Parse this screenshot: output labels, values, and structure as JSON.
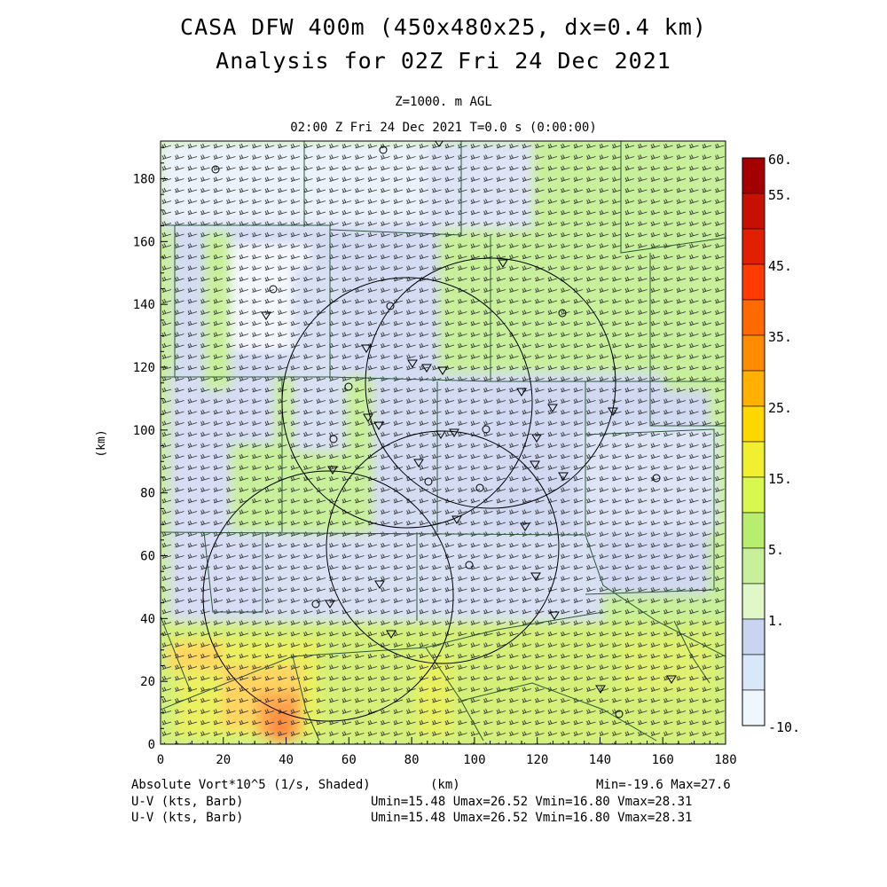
{
  "header": {
    "title_line1": "CASA DFW 400m (450x480x25, dx=0.4 km)",
    "title_line2": "Analysis for 02Z Fri 24 Dec 2021",
    "level": "Z=1000. m AGL",
    "time": "02:00 Z Fri 24 Dec 2021    T=0.0 s (0:00:00)"
  },
  "footer": {
    "field": "Absolute Vort*10^5 (1/s, Shaded)",
    "xunit": "(km)",
    "minmax": "Min=-19.6 Max=27.6",
    "barb1": "U-V (kts, Barb)",
    "barb2": "U-V (kts, Barb)",
    "stats1": "Umin=15.48 Umax=26.52 Vmin=16.80 Vmax=28.31",
    "stats2": "Umin=15.48 Umax=26.52 Vmin=16.80 Vmax=28.31"
  },
  "colorbar": {
    "labels": [
      "60.",
      "55.",
      "45.",
      "35.",
      "25.",
      "15.",
      "5.",
      "1.",
      "-10."
    ],
    "colors": [
      "#a40000",
      "#c81000",
      "#e02000",
      "#ff3c00",
      "#ff6a00",
      "#ff8c00",
      "#ffb000",
      "#ffd800",
      "#f0f030",
      "#d8f850",
      "#b8ee70",
      "#c8f09a",
      "#e0f8c8",
      "#c8d4f0",
      "#d8e8f8",
      "#eef8fc"
    ]
  },
  "chart_data": {
    "type": "heatmap",
    "title": "CASA DFW 400m (450x480x25, dx=0.4 km)",
    "subtitle": "Analysis for 02Z Fri 24 Dec 2021",
    "xlabel": "(km)",
    "ylabel": "(km)",
    "xlim": [
      0,
      180
    ],
    "ylim": [
      0,
      192
    ],
    "xticks": [
      "0",
      "20",
      "40",
      "60",
      "80",
      "100",
      "120",
      "140",
      "160",
      "180"
    ],
    "yticks": [
      "0",
      "20",
      "40",
      "60",
      "80",
      "100",
      "120",
      "140",
      "160",
      "180"
    ],
    "field": "Absolute Vort*10^5 (1/s)",
    "min": -19.6,
    "max": 27.6,
    "contour_levels": [
      -10,
      1,
      5,
      15,
      25,
      35,
      45,
      55,
      60
    ],
    "wind_barbs": {
      "units": "kts",
      "umin": 15.48,
      "umax": 26.52,
      "vmin": 16.8,
      "vmax": 28.31
    },
    "radar_range_rings": [
      {
        "cx": 79,
        "cy": 109,
        "r": 40
      },
      {
        "cx": 110,
        "cy": 106,
        "r": 40
      },
      {
        "cx": 79,
        "cy": 63,
        "r": 37
      },
      {
        "cx": 37,
        "cy": 48,
        "r": 40
      }
    ]
  }
}
